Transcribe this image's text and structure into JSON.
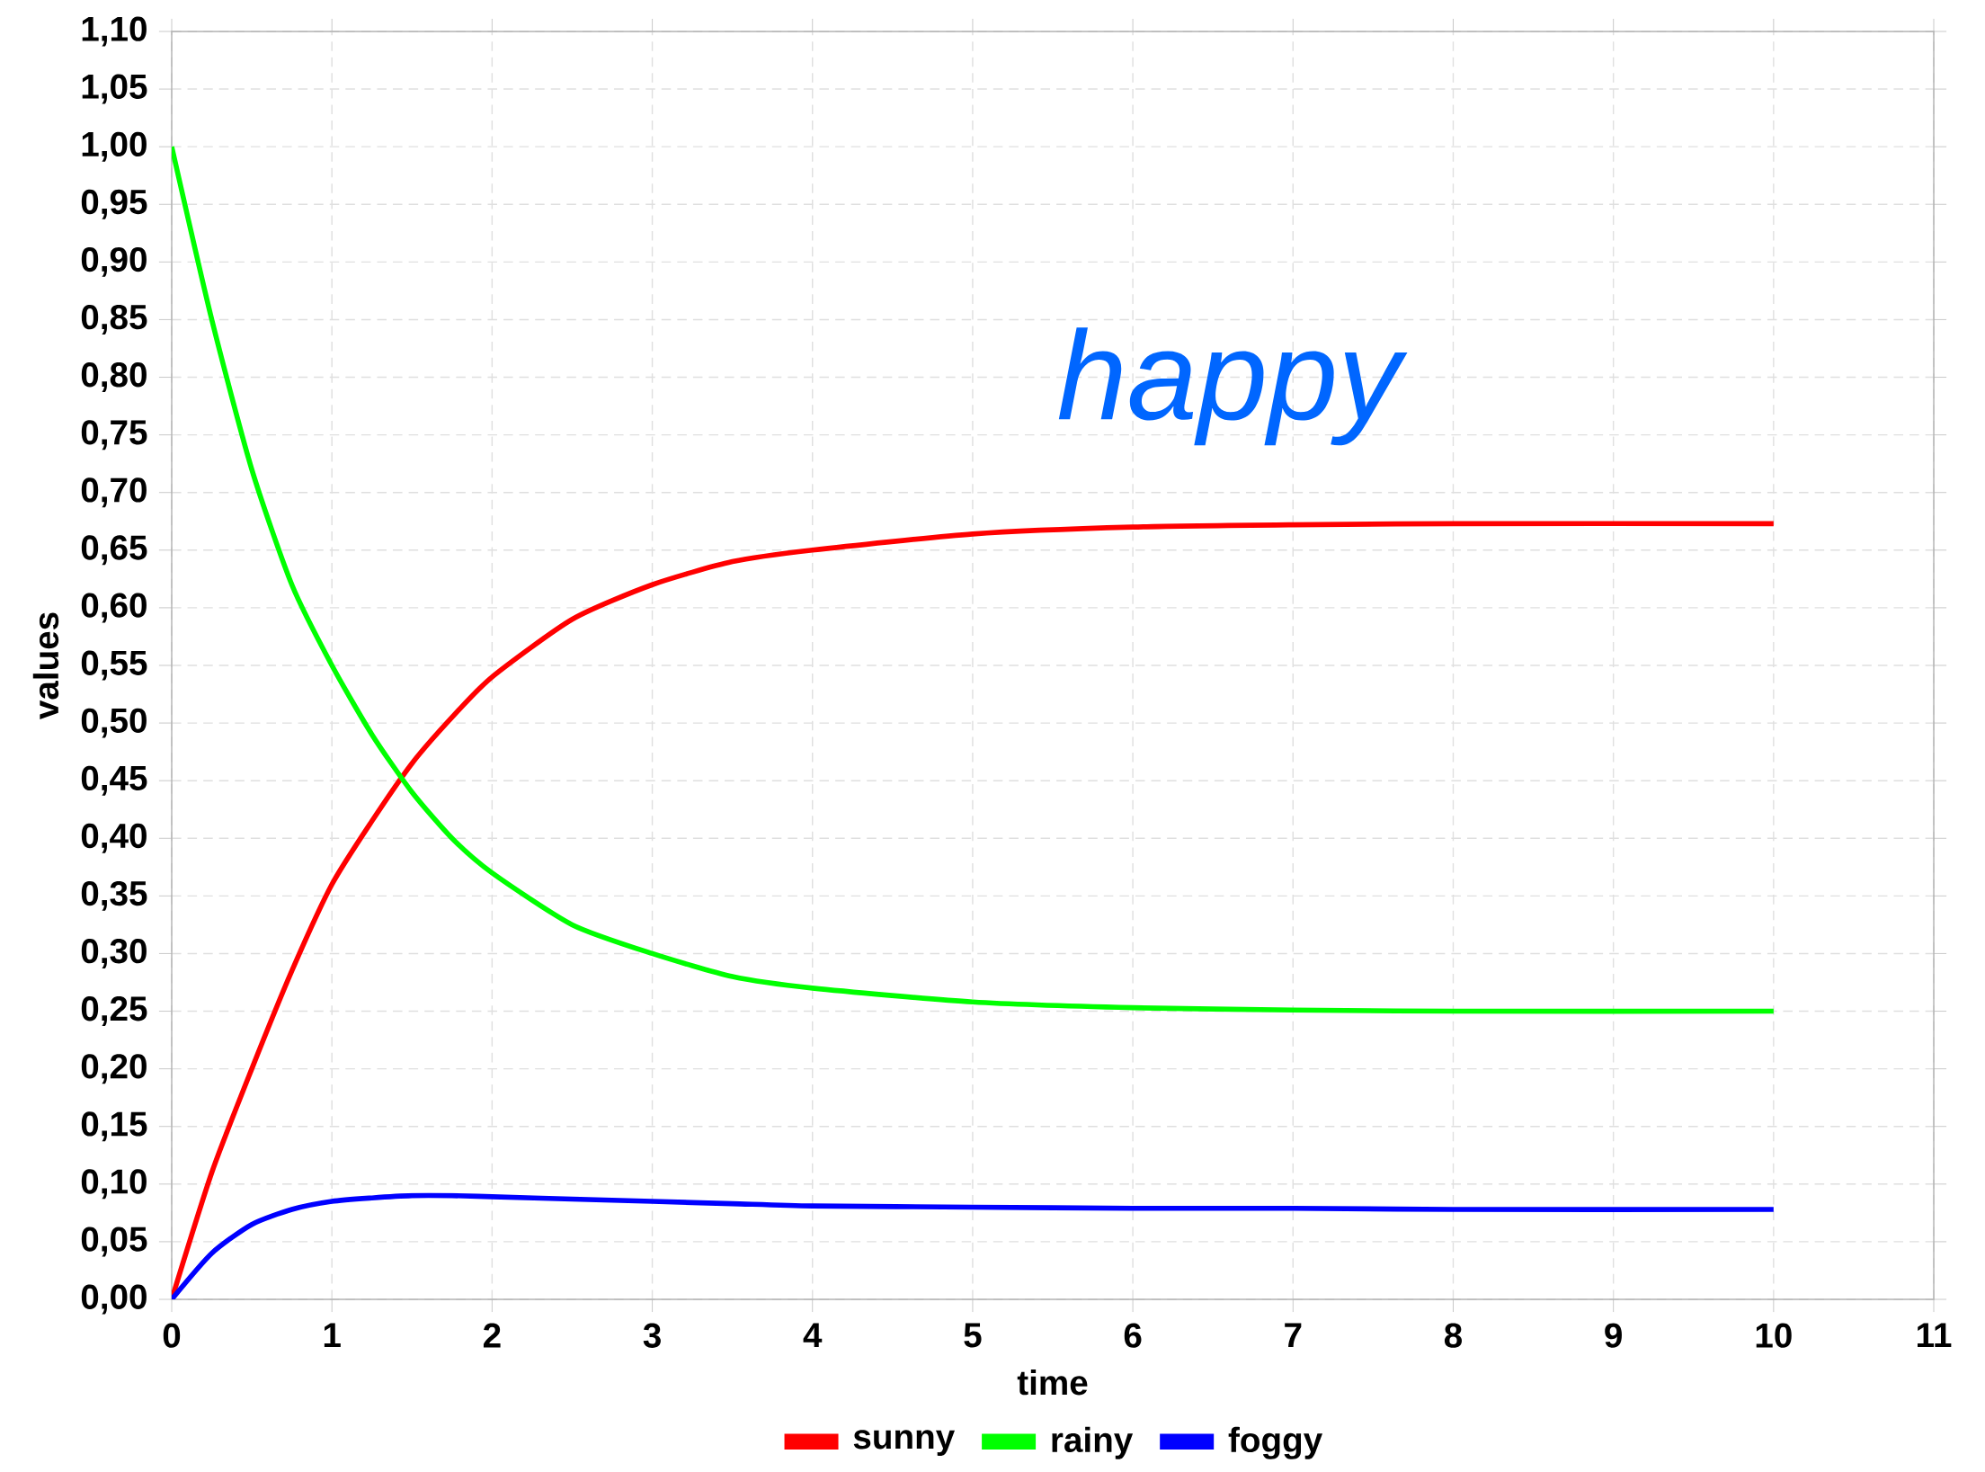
{
  "chart_data": {
    "type": "line",
    "xlabel": "time",
    "ylabel": "values",
    "xlim": [
      0,
      11
    ],
    "ylim": [
      0,
      1.1
    ],
    "xticks": [
      0,
      1,
      2,
      3,
      4,
      5,
      6,
      7,
      8,
      9,
      10,
      11
    ],
    "yticks": [
      {
        "value": 0,
        "label": "0,00"
      },
      {
        "value": 0.05,
        "label": "0,05"
      },
      {
        "value": 0.1,
        "label": "0,10"
      },
      {
        "value": 0.15,
        "label": "0,15"
      },
      {
        "value": 0.2,
        "label": "0,20"
      },
      {
        "value": 0.25,
        "label": "0,25"
      },
      {
        "value": 0.3,
        "label": "0,30"
      },
      {
        "value": 0.35,
        "label": "0,35"
      },
      {
        "value": 0.4,
        "label": "0,40"
      },
      {
        "value": 0.45,
        "label": "0,45"
      },
      {
        "value": 0.5,
        "label": "0,50"
      },
      {
        "value": 0.55,
        "label": "0,55"
      },
      {
        "value": 0.6,
        "label": "0,60"
      },
      {
        "value": 0.65,
        "label": "0,65"
      },
      {
        "value": 0.7,
        "label": "0,70"
      },
      {
        "value": 0.75,
        "label": "0,75"
      },
      {
        "value": 0.8,
        "label": "0,80"
      },
      {
        "value": 0.85,
        "label": "0,85"
      },
      {
        "value": 0.9,
        "label": "0,90"
      },
      {
        "value": 0.95,
        "label": "0,95"
      },
      {
        "value": 1.0,
        "label": "1,00"
      },
      {
        "value": 1.05,
        "label": "1,05"
      },
      {
        "value": 1.1,
        "label": "1,10"
      }
    ],
    "x": [
      0,
      0.25,
      0.5,
      0.75,
      1,
      1.25,
      1.5,
      1.75,
      2,
      2.5,
      3,
      3.5,
      4,
      5,
      6,
      7,
      8,
      10
    ],
    "series": [
      {
        "name": "sunny",
        "color": "#ff0000",
        "values": [
          0,
          0.11,
          0.2,
          0.285,
          0.36,
          0.415,
          0.465,
          0.505,
          0.54,
          0.59,
          0.62,
          0.64,
          0.65,
          0.664,
          0.67,
          0.672,
          0.673,
          0.673
        ]
      },
      {
        "name": "rainy",
        "color": "#00ff00",
        "values": [
          1.0,
          0.85,
          0.72,
          0.62,
          0.55,
          0.49,
          0.44,
          0.4,
          0.37,
          0.325,
          0.3,
          0.28,
          0.27,
          0.258,
          0.253,
          0.251,
          0.25,
          0.25
        ]
      },
      {
        "name": "foggy",
        "color": "#0000ff",
        "values": [
          0,
          0.04,
          0.065,
          0.078,
          0.085,
          0.088,
          0.09,
          0.09,
          0.089,
          0.087,
          0.085,
          0.083,
          0.081,
          0.08,
          0.079,
          0.079,
          0.078,
          0.078
        ]
      }
    ],
    "annotations": [
      "happy"
    ],
    "grid": true,
    "legend": "bottom",
    "marker": "none",
    "line_style": "solid"
  }
}
